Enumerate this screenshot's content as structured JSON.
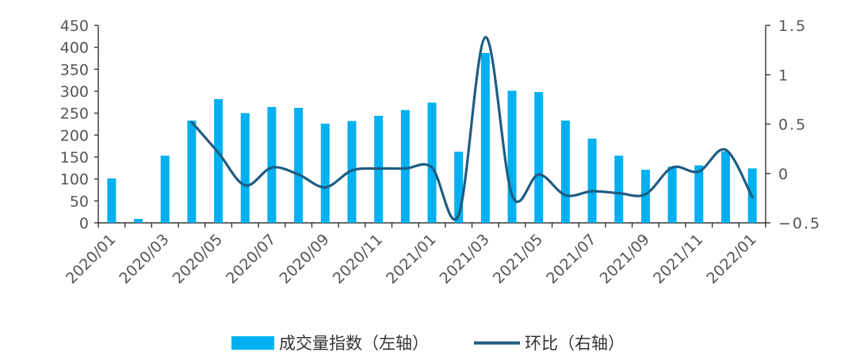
{
  "chart_data": {
    "type": "bar",
    "categories": [
      "2020/01",
      "2020/02",
      "2020/03",
      "2020/04",
      "2020/05",
      "2020/06",
      "2020/07",
      "2020/08",
      "2020/09",
      "2020/10",
      "2020/11",
      "2020/12",
      "2021/01",
      "2021/02",
      "2021/03",
      "2021/04",
      "2021/05",
      "2021/06",
      "2021/07",
      "2021/08",
      "2021/09",
      "2021/10",
      "2021/11",
      "2021/12",
      "2022/01"
    ],
    "x_tick_labels": [
      "2020/01",
      "2020/03",
      "2020/05",
      "2020/07",
      "2020/09",
      "2020/11",
      "2021/01",
      "2021/03",
      "2021/05",
      "2021/07",
      "2021/09",
      "2021/11",
      "2022/01"
    ],
    "series": [
      {
        "name": "成交量指数（左轴）",
        "type": "bar",
        "axis": "left",
        "color": "#00B0F0",
        "values": [
          101,
          9,
          153,
          233,
          282,
          250,
          264,
          262,
          226,
          232,
          244,
          257,
          274,
          162,
          387,
          301,
          298,
          233,
          192,
          153,
          121,
          128,
          131,
          163,
          124
        ]
      },
      {
        "name": "环比（右轴）",
        "type": "line",
        "axis": "right",
        "color": "#1F5C82",
        "values": [
          null,
          null,
          null,
          0.52,
          0.21,
          -0.12,
          0.06,
          -0.01,
          -0.14,
          0.03,
          0.05,
          0.05,
          0.06,
          -0.42,
          1.38,
          -0.22,
          -0.01,
          -0.22,
          -0.18,
          -0.2,
          -0.21,
          0.06,
          0.02,
          0.24,
          -0.24
        ]
      }
    ],
    "y_left": {
      "min": 0,
      "max": 450,
      "ticks": [
        "0",
        "50",
        "100",
        "150",
        "200",
        "250",
        "300",
        "350",
        "400",
        "450"
      ]
    },
    "y_right": {
      "min": -0.5,
      "max": 1.5,
      "ticks": [
        "−0.5",
        "0",
        "0.5",
        "1",
        "1.5"
      ]
    },
    "legend": {
      "position": "bottom",
      "items": [
        {
          "label": "成交量指数（左轴）",
          "kind": "bar",
          "color": "#00B0F0"
        },
        {
          "label": "环比（右轴）",
          "kind": "line",
          "color": "#1F5C82"
        }
      ]
    },
    "grid": false
  }
}
